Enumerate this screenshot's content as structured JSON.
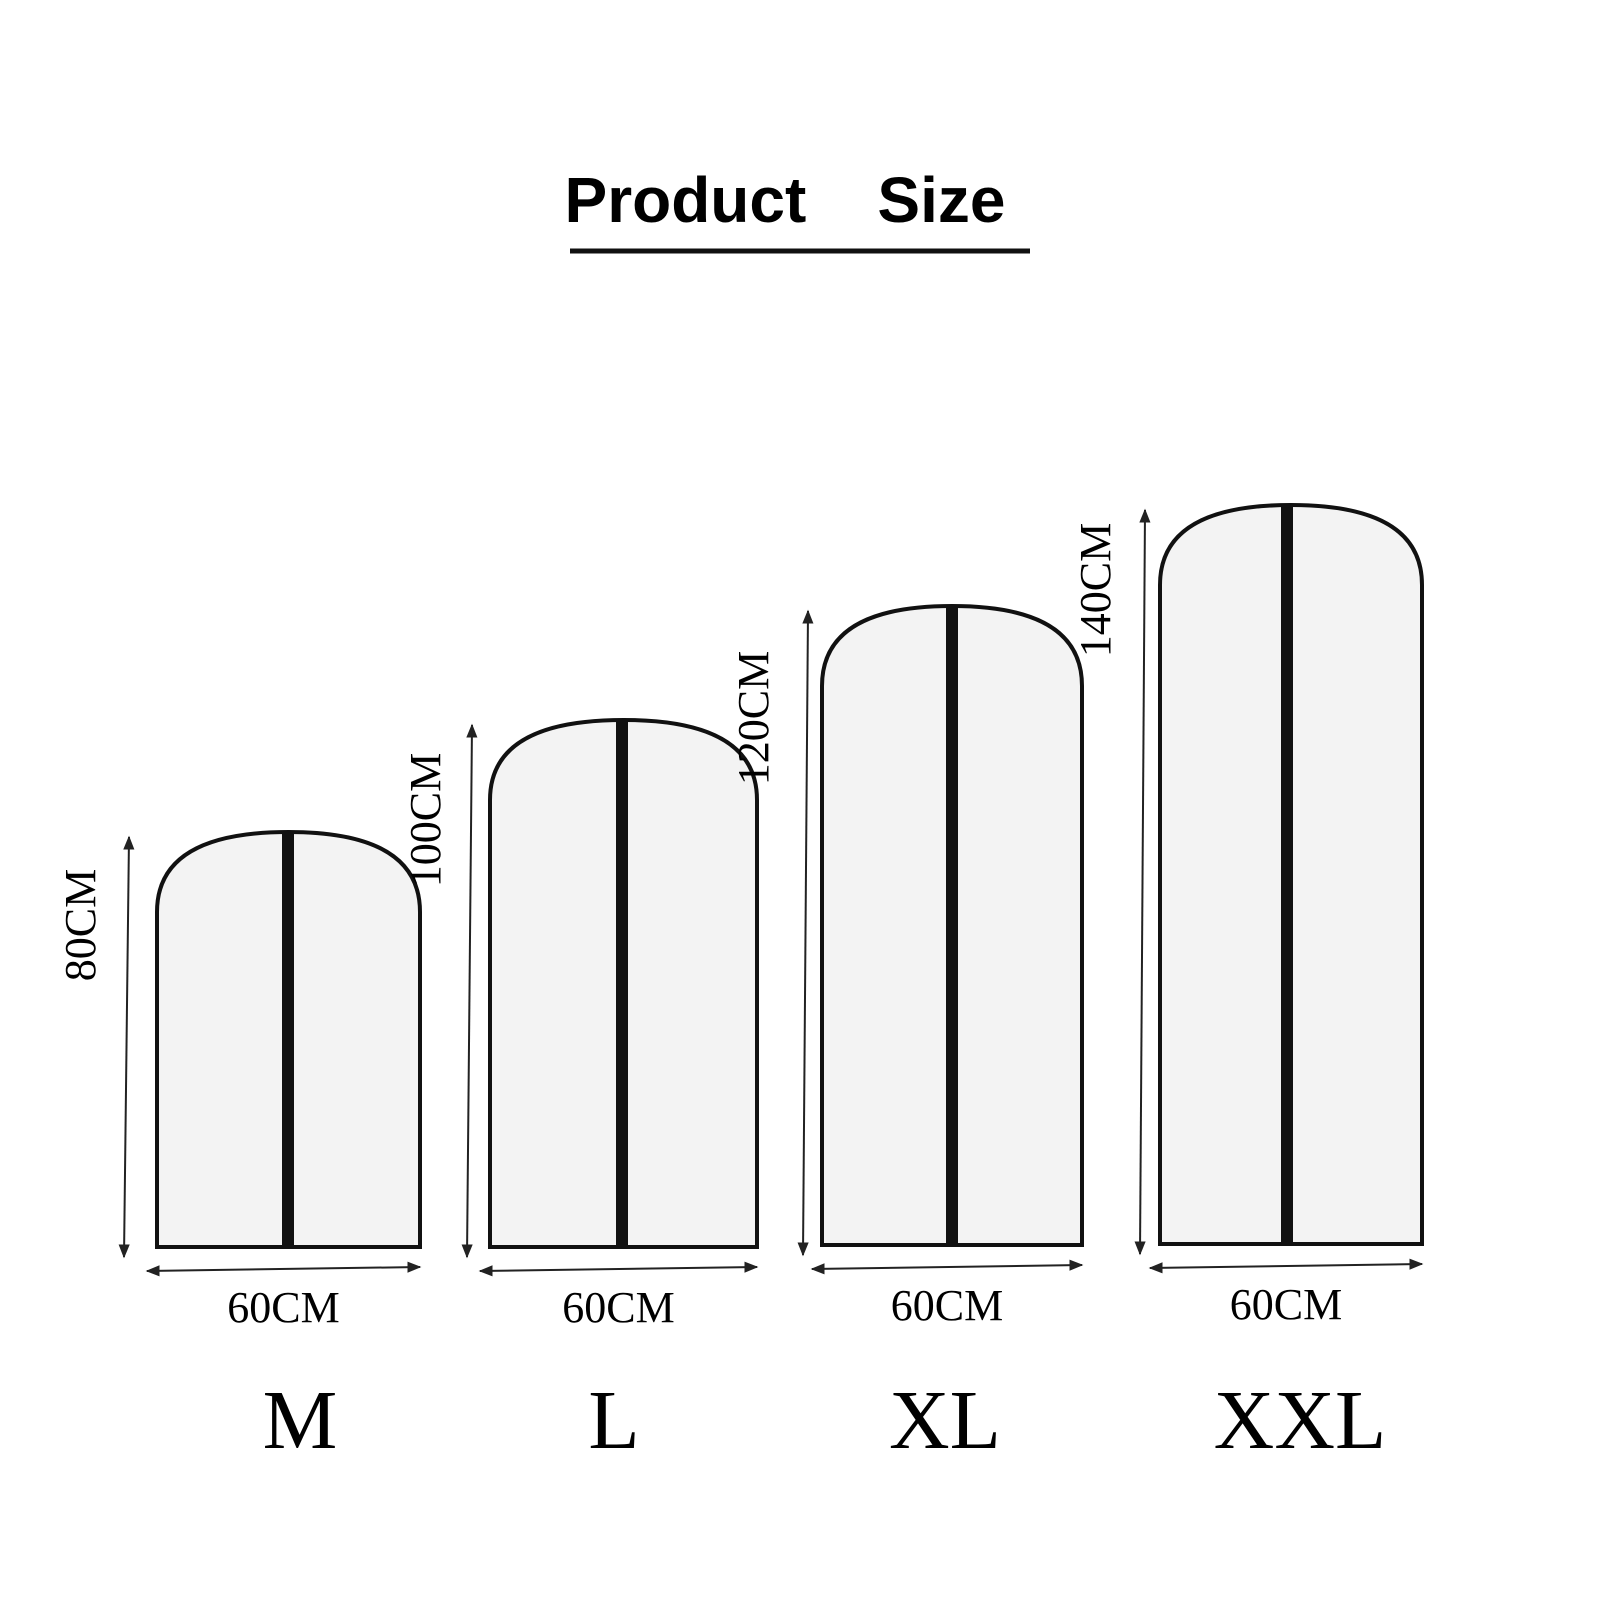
{
  "header": {
    "title": "Product    Size"
  },
  "items": [
    {
      "size": "M",
      "height": "80CM",
      "width": "60CM"
    },
    {
      "size": "L",
      "height": "100CM",
      "width": "60CM"
    },
    {
      "size": "XL",
      "height": "120CM",
      "width": "60CM"
    },
    {
      "size": "XXL",
      "height": "140CM",
      "width": "60CM"
    }
  ]
}
